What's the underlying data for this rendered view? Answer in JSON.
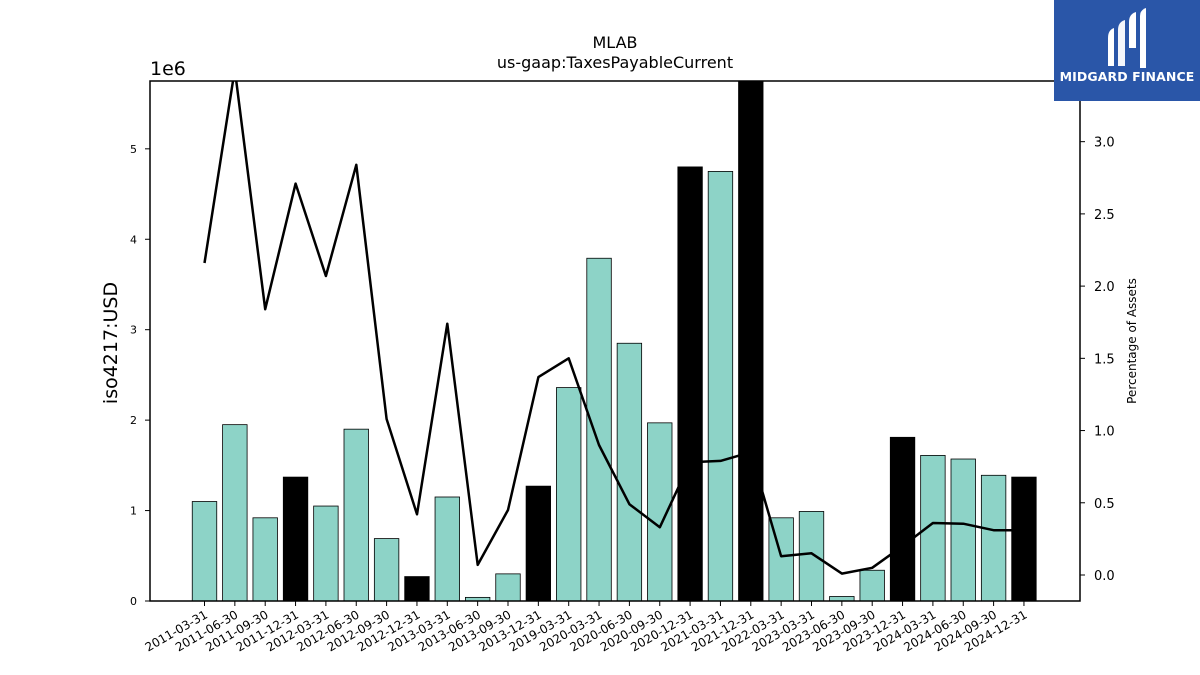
{
  "brand": {
    "name": "MIDGARD FINANCE",
    "icon": "midgard-logo-icon",
    "bg_color": "#2a56a8"
  },
  "chart_data": {
    "type": "bar",
    "title": "MLAB",
    "subtitle": "us-gaap:TaxesPayableCurrent",
    "ylabel": "iso4217:USD",
    "y_offset_label": "1e6",
    "y2label": "Percentage of Assets",
    "ylim": [
      0,
      5750000
    ],
    "y2lim": [
      -0.18,
      3.42
    ],
    "yticks": [
      0,
      1000000,
      2000000,
      3000000,
      4000000,
      5000000
    ],
    "ytick_labels": [
      "0",
      "1",
      "2",
      "3",
      "4",
      "5"
    ],
    "y2ticks": [
      0.0,
      0.5,
      1.0,
      1.5,
      2.0,
      2.5,
      3.0
    ],
    "y2tick_labels": [
      "0.0",
      "0.5",
      "1.0",
      "1.5",
      "2.0",
      "2.5",
      "3.0"
    ],
    "categories": [
      "2011-03-31",
      "2011-06-30",
      "2011-09-30",
      "2011-12-31",
      "2012-03-31",
      "2012-06-30",
      "2012-09-30",
      "2012-12-31",
      "2013-03-31",
      "2013-06-30",
      "2013-09-30",
      "2013-12-31",
      "2019-03-31",
      "2020-03-31",
      "2020-06-30",
      "2020-09-30",
      "2020-12-31",
      "2021-03-31",
      "2021-12-31",
      "2022-03-31",
      "2023-03-31",
      "2023-06-30",
      "2023-09-30",
      "2023-12-31",
      "2024-03-31",
      "2024-06-30",
      "2024-09-30",
      "2024-12-31"
    ],
    "series": [
      {
        "type": "bar",
        "values": [
          1100000,
          1950000,
          920000,
          1370000,
          1050000,
          1900000,
          690000,
          270000,
          1150000,
          40000,
          300000,
          1270000,
          2360000,
          3790000,
          2850000,
          1970000,
          4800000,
          4750000,
          5900000,
          920000,
          990000,
          50000,
          340000,
          1810000,
          1610000,
          1570000,
          1390000,
          1370000
        ],
        "highlight": [
          false,
          false,
          false,
          true,
          false,
          false,
          false,
          true,
          false,
          false,
          false,
          true,
          false,
          false,
          false,
          false,
          true,
          false,
          true,
          false,
          false,
          false,
          false,
          true,
          false,
          false,
          false,
          true
        ]
      },
      {
        "type": "line",
        "axis": "right",
        "values": [
          2.16,
          3.5,
          1.84,
          2.71,
          2.07,
          2.84,
          1.08,
          0.42,
          1.74,
          0.07,
          0.45,
          1.37,
          1.5,
          0.9,
          0.49,
          0.33,
          0.78,
          0.79,
          0.85,
          0.13,
          0.15,
          0.01,
          0.05,
          0.2,
          0.36,
          0.355,
          0.31,
          0.31
        ]
      }
    ],
    "colors": {
      "bar": "#8dd3c7",
      "bar_highlight": "#000000",
      "line": "#000000"
    },
    "grid": false
  }
}
